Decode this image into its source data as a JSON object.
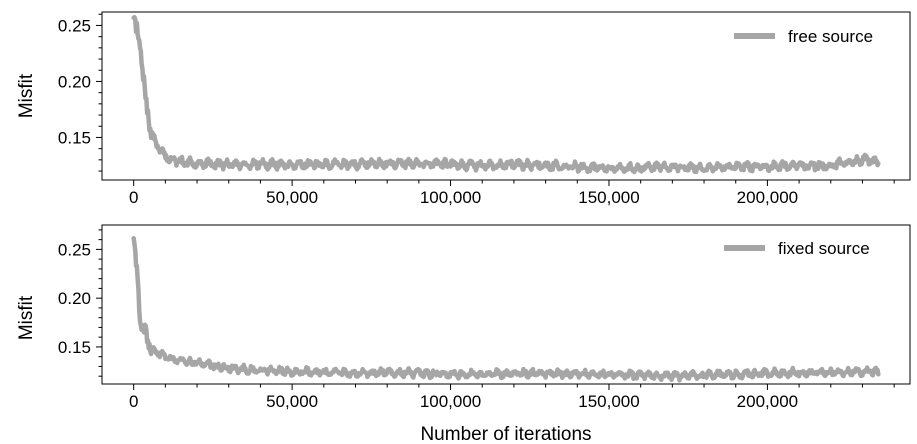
{
  "chart_data": [
    {
      "type": "line",
      "ylabel": "Misfit",
      "xlabel": "",
      "xlim": [
        -10000,
        245000
      ],
      "ylim": [
        0.112,
        0.262
      ],
      "xticks": [
        0,
        50000,
        100000,
        150000,
        200000
      ],
      "xtick_labels": [
        "0",
        "50,000",
        "100,000",
        "150,000",
        "200,000"
      ],
      "yticks": [
        0.15,
        0.2,
        0.25
      ],
      "ytick_labels": [
        "0.15",
        "0.20",
        "0.25"
      ],
      "grid": false,
      "legend_position": "top-right",
      "series": [
        {
          "name": "free source",
          "color": "#a6a6a6",
          "x": [
            0,
            1000,
            2000,
            3000,
            4000,
            5000,
            6000,
            8000,
            10000,
            12000,
            15000,
            20000,
            25000,
            30000,
            40000,
            50000,
            60000,
            70000,
            80000,
            90000,
            100000,
            110000,
            120000,
            130000,
            140000,
            150000,
            160000,
            170000,
            180000,
            190000,
            200000,
            210000,
            220000,
            225000,
            230000,
            235000
          ],
          "y": [
            0.25,
            0.243,
            0.236,
            0.2,
            0.18,
            0.163,
            0.15,
            0.14,
            0.133,
            0.13,
            0.128,
            0.127,
            0.126,
            0.126,
            0.126,
            0.126,
            0.126,
            0.126,
            0.127,
            0.127,
            0.126,
            0.125,
            0.126,
            0.125,
            0.124,
            0.122,
            0.123,
            0.124,
            0.123,
            0.124,
            0.124,
            0.125,
            0.125,
            0.128,
            0.13,
            0.128
          ]
        }
      ]
    },
    {
      "type": "line",
      "ylabel": "Misfit",
      "xlabel": "Number of iterations",
      "xlim": [
        -10000,
        245000
      ],
      "ylim": [
        0.112,
        0.275
      ],
      "xticks": [
        0,
        50000,
        100000,
        150000,
        200000
      ],
      "xtick_labels": [
        "0",
        "50,000",
        "100,000",
        "150,000",
        "200,000"
      ],
      "yticks": [
        0.15,
        0.2,
        0.25
      ],
      "ytick_labels": [
        "0.15",
        "0.20",
        "0.25"
      ],
      "grid": false,
      "legend_position": "top-right",
      "series": [
        {
          "name": "fixed source",
          "color": "#a6a6a6",
          "x": [
            0,
            500,
            1000,
            1500,
            2000,
            3000,
            4000,
            5000,
            7000,
            10000,
            15000,
            20000,
            25000,
            30000,
            40000,
            50000,
            60000,
            70000,
            80000,
            90000,
            100000,
            110000,
            120000,
            130000,
            140000,
            150000,
            160000,
            170000,
            180000,
            190000,
            200000,
            210000,
            220000,
            230000,
            235000
          ],
          "y": [
            0.265,
            0.24,
            0.228,
            0.205,
            0.18,
            0.168,
            0.16,
            0.152,
            0.145,
            0.14,
            0.136,
            0.134,
            0.131,
            0.128,
            0.126,
            0.125,
            0.124,
            0.123,
            0.124,
            0.123,
            0.122,
            0.122,
            0.123,
            0.123,
            0.122,
            0.122,
            0.121,
            0.12,
            0.121,
            0.122,
            0.123,
            0.124,
            0.124,
            0.125,
            0.124
          ]
        }
      ]
    }
  ]
}
